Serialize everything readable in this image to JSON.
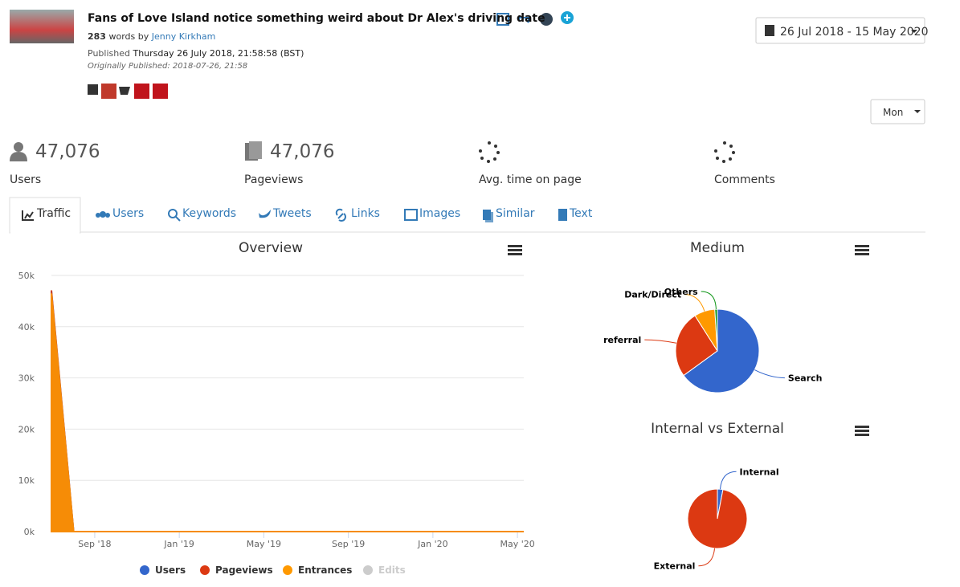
{
  "header": {
    "title": "Fans of Love Island notice something weird about Dr Alex's driving date",
    "words": "283",
    "words_label": "words by",
    "author": "Jenny Kirkham",
    "published_label": "Published",
    "published": "Thursday 26 July 2018, 21:58:58 (BST)",
    "original": "Originally Published: 2018-07-26, 21:58"
  },
  "date_range": "26 Jul 2018 - 15 May 2020",
  "interval": "Mon",
  "stats": [
    {
      "value": "47,076",
      "label": "Users"
    },
    {
      "value": "47,076",
      "label": "Pageviews"
    },
    {
      "label": "Avg. time on page"
    },
    {
      "label": "Comments"
    }
  ],
  "tabs": [
    "Traffic",
    "Users",
    "Keywords",
    "Tweets",
    "Links",
    "Images",
    "Similar",
    "Text"
  ],
  "chart_data": [
    {
      "type": "area",
      "title": "Overview",
      "x": [
        5.95,
        7.0,
        28.3
      ],
      "xlim": [
        5.95,
        28.3
      ],
      "xticks": [
        {
          "value": 8,
          "label": "Sep '18"
        },
        {
          "value": 12,
          "label": "Jan '19"
        },
        {
          "value": 16,
          "label": "May '19"
        },
        {
          "value": 20,
          "label": "Sep '19"
        },
        {
          "value": 24,
          "label": "Jan '20"
        },
        {
          "value": 28,
          "label": "May '20"
        }
      ],
      "ylim": [
        0,
        50000
      ],
      "yticks": [
        {
          "value": 0,
          "label": "0k"
        },
        {
          "value": 10000,
          "label": "10k"
        },
        {
          "value": 20000,
          "label": "20k"
        },
        {
          "value": 30000,
          "label": "30k"
        },
        {
          "value": 40000,
          "label": "40k"
        },
        {
          "value": 50000,
          "label": "50k"
        }
      ],
      "grid": true,
      "series": [
        {
          "name": "Users",
          "color": "#3366cc",
          "values": [
            47000,
            0,
            0
          ]
        },
        {
          "name": "Pageviews",
          "color": "#dc3912",
          "values": [
            47100,
            0,
            0
          ]
        },
        {
          "name": "Entrances",
          "color": "#ff9900",
          "values": [
            46500,
            0,
            0
          ]
        },
        {
          "name": "Edits",
          "color": "#cccccc",
          "visible": false
        }
      ]
    },
    {
      "type": "pie",
      "title": "Medium",
      "categories": [
        "Search",
        "referral",
        "Dark/Direct",
        "Others"
      ],
      "values": [
        65,
        26,
        8,
        1
      ],
      "colors": [
        "#3366cc",
        "#dc3912",
        "#ff9900",
        "#109618"
      ]
    },
    {
      "type": "pie",
      "title": "Internal vs External",
      "categories": [
        "Internal",
        "External"
      ],
      "values": [
        3,
        97
      ],
      "colors": [
        "#3366cc",
        "#dc3912"
      ]
    }
  ]
}
